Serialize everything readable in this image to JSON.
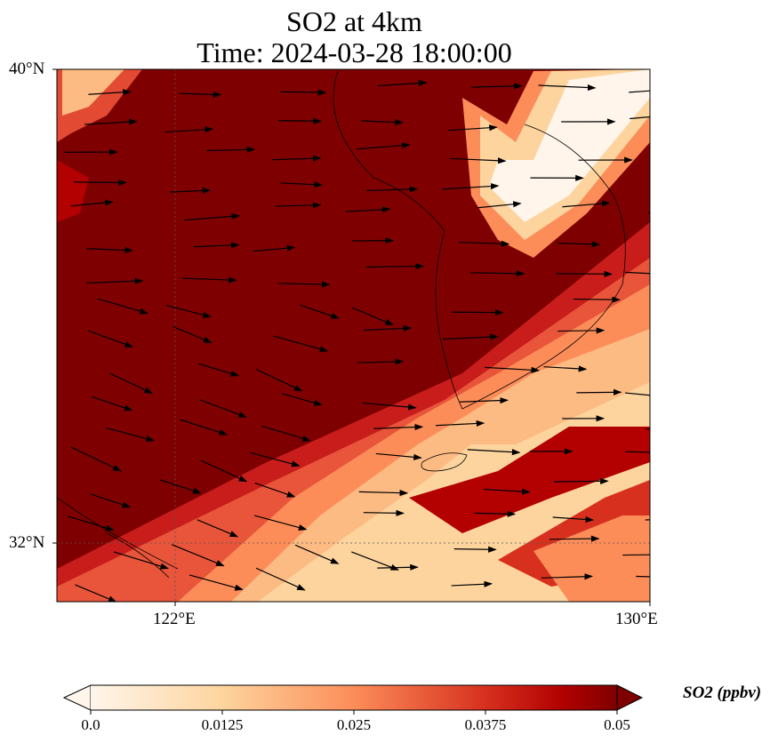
{
  "title": {
    "line1": "SO2 at 4km",
    "line2": "Time: 2024-03-28 18:00:00"
  },
  "axes": {
    "lat_labels": [
      "40°N",
      "32°N"
    ],
    "lon_labels": [
      "122°E",
      "130°E"
    ]
  },
  "colorbar": {
    "label": "SO2 (ppbv)",
    "ticks": [
      "0.0",
      "0.0125",
      "0.025",
      "0.0375",
      "0.05"
    ],
    "range": [
      0.0,
      0.05
    ],
    "extend": "both",
    "colormap": [
      "#fff5eb",
      "#fdd49e",
      "#fc8d59",
      "#d7301f",
      "#b00000",
      "#7f0000"
    ]
  },
  "colors": {
    "background_field": "#7f0000",
    "high_band": "#fef0e0"
  }
}
